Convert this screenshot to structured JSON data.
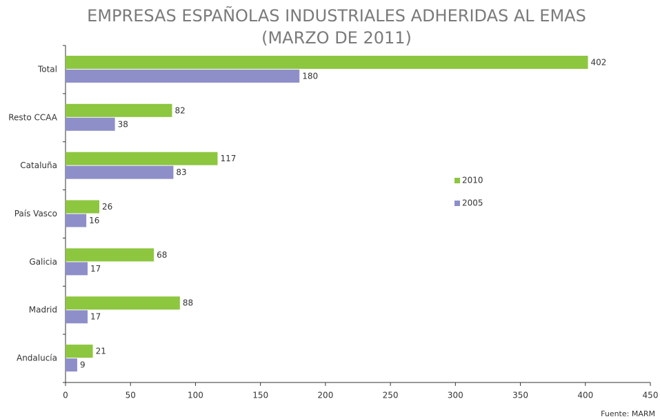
{
  "chart_data": {
    "type": "hbar",
    "title": [
      "EMPRESAS ESPAÑOLAS INDUSTRIALES ADHERIDAS AL EMAS",
      "(MARZO DE 2011)"
    ],
    "categories": [
      "Total",
      "Resto CCAA",
      "Cataluña",
      "País Vasco",
      "Galicia",
      "Madrid",
      "Andalucía"
    ],
    "series": [
      {
        "name": "2010",
        "color": "#8dc63f",
        "values": [
          402,
          82,
          117,
          26,
          68,
          88,
          21
        ]
      },
      {
        "name": "2005",
        "color": "#8e8fc8",
        "values": [
          180,
          38,
          83,
          16,
          17,
          17,
          9
        ]
      }
    ],
    "xlim": [
      0,
      450
    ],
    "xticks": [
      0,
      50,
      100,
      150,
      200,
      250,
      300,
      350,
      400,
      450
    ],
    "source": "Fuente: MARM"
  }
}
